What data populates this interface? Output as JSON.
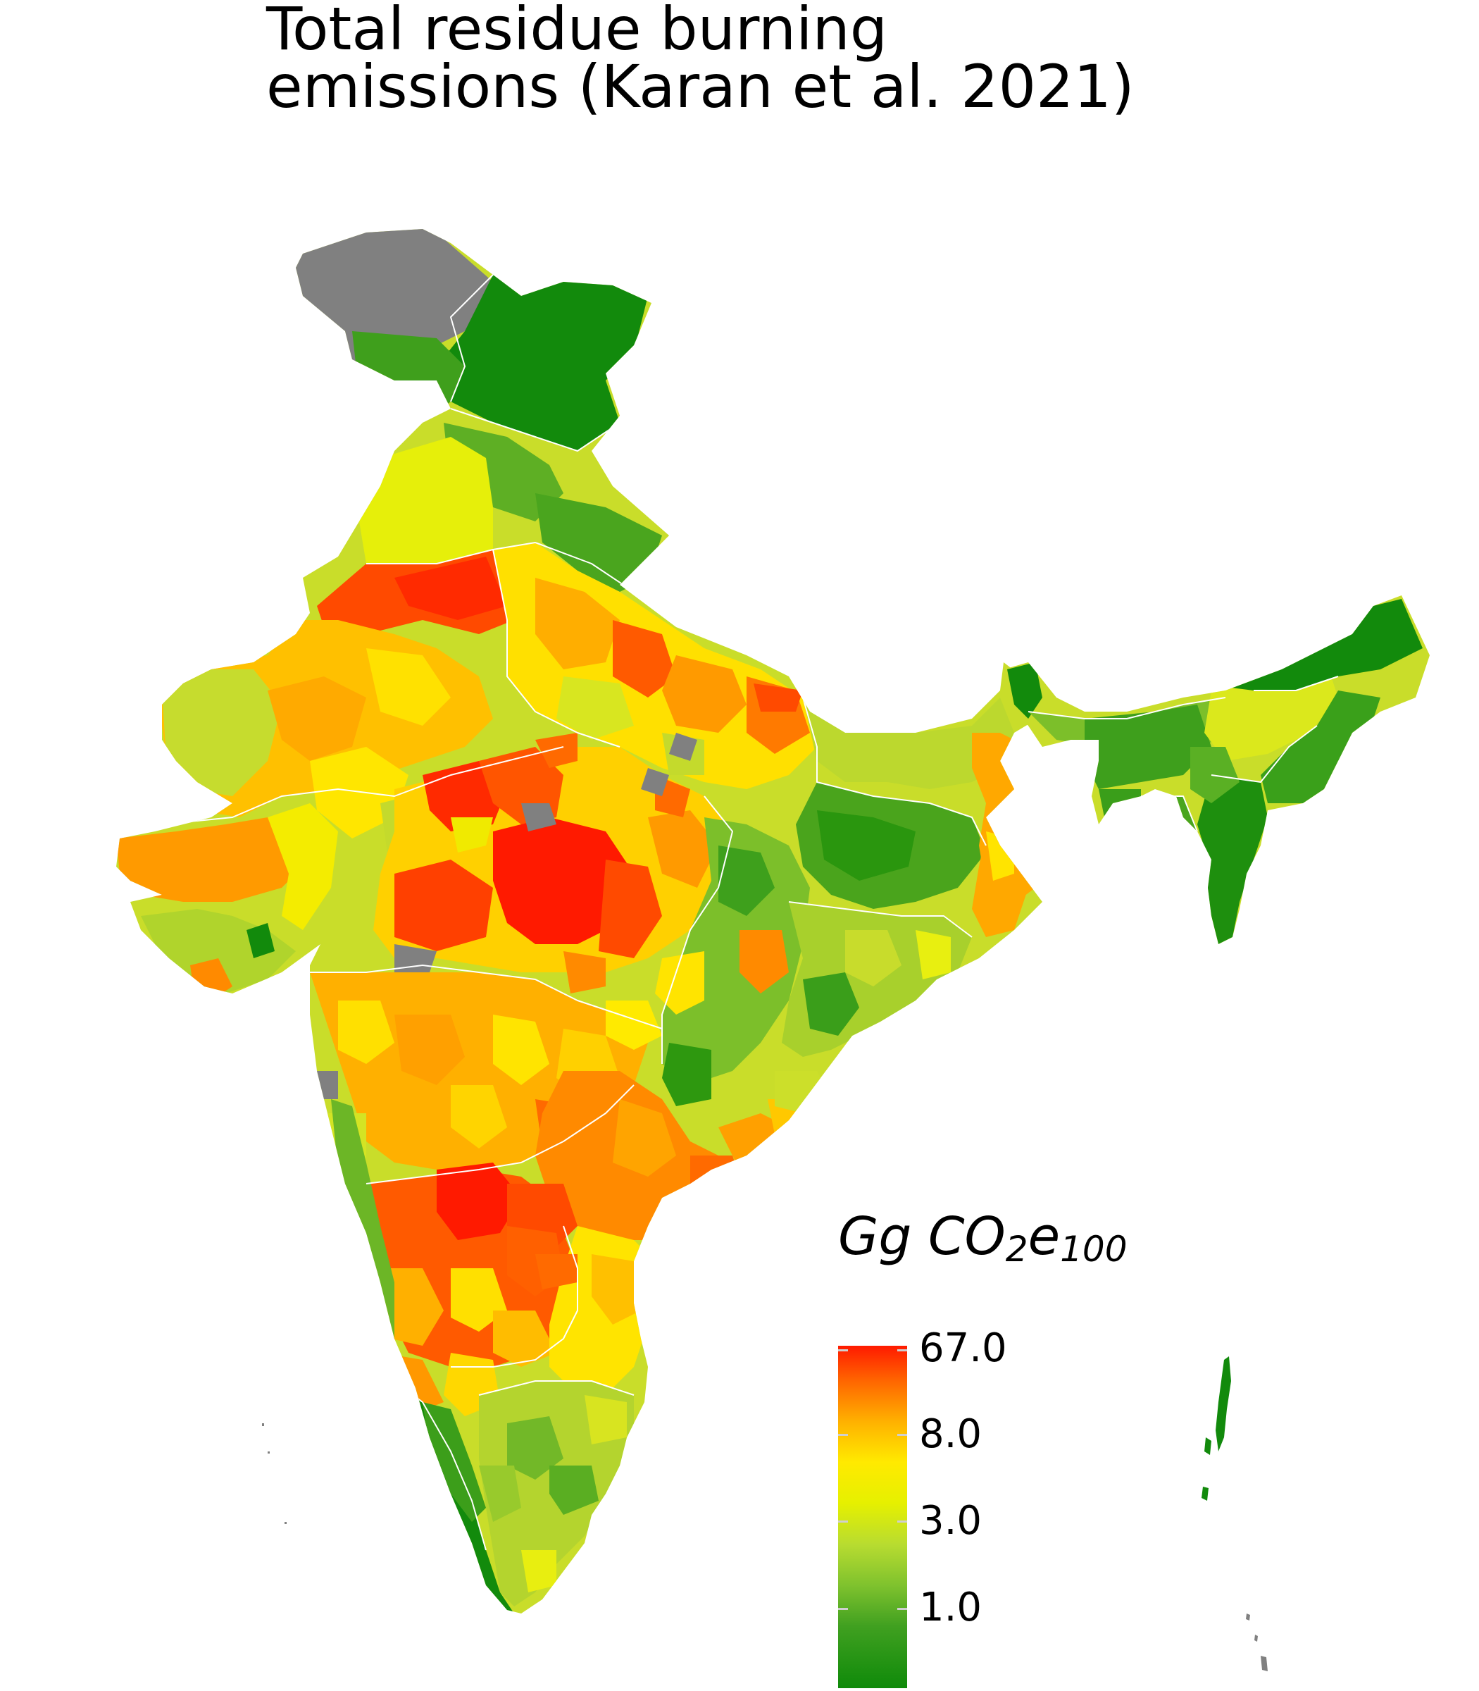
{
  "title": {
    "line1": "Total residue burning",
    "line2": "emissions (Karan et al. 2021)"
  },
  "legend": {
    "title_main": "Gg CO",
    "title_sub1": "2",
    "title_mid": "e",
    "title_sub2": "100",
    "ticks": [
      "67.0",
      "8.0",
      "3.0",
      "1.0"
    ],
    "colors": [
      "#ff1a00",
      "#ffb000",
      "#ffea00",
      "#b8dc30",
      "#40a020",
      "#0f8a0a"
    ],
    "no_data_color": "#808080"
  }
}
